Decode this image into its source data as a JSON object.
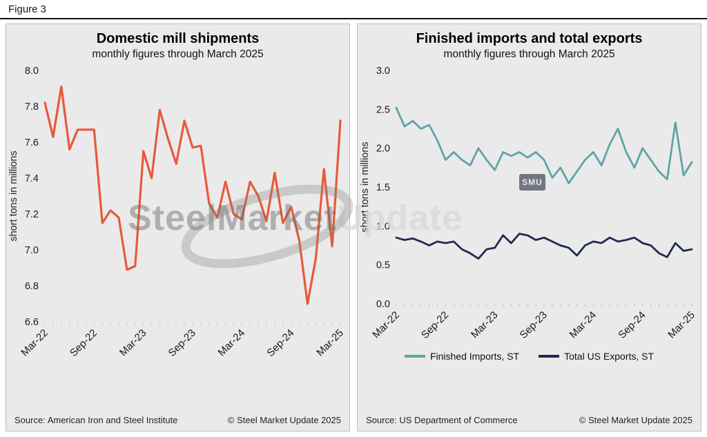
{
  "figure_label": "Figure 3",
  "watermark": {
    "text_bold": "SteelMarket",
    "text_light": "Update",
    "badge": "SMU"
  },
  "left_panel": {
    "title": "Domestic mill shipments",
    "subtitle": "monthly figures through March 2025",
    "ylabel": "short tons in millions",
    "source": "Source: American Iron and Steel Institute",
    "copyright": "© Steel Market Update 2025"
  },
  "right_panel": {
    "title": "Finished imports and total exports",
    "subtitle": "monthly figures through March 2025",
    "ylabel": "short tons in millions",
    "source": "Source: US Department of Commerce",
    "copyright": "© Steel Market Update 2025",
    "legend": [
      {
        "label": "Finished Imports, ST",
        "color": "#5fa3a8"
      },
      {
        "label": "Total US Exports, ST",
        "color": "#1e2a4f"
      }
    ]
  },
  "chart_data": [
    {
      "type": "line",
      "title": "Domestic mill shipments",
      "subtitle": "monthly figures through March 2025",
      "ylabel": "short tons in millions",
      "ylim": [
        6.6,
        8.0
      ],
      "ytick_step": 0.2,
      "grid": false,
      "legend_position": "none",
      "xtick_every": 6,
      "categories": [
        "Mar-22",
        "Apr-22",
        "May-22",
        "Jun-22",
        "Jul-22",
        "Aug-22",
        "Sep-22",
        "Oct-22",
        "Nov-22",
        "Dec-22",
        "Jan-23",
        "Feb-23",
        "Mar-23",
        "Apr-23",
        "May-23",
        "Jun-23",
        "Jul-23",
        "Aug-23",
        "Sep-23",
        "Oct-23",
        "Nov-23",
        "Dec-23",
        "Jan-24",
        "Feb-24",
        "Mar-24",
        "Apr-24",
        "May-24",
        "Jun-24",
        "Jul-24",
        "Aug-24",
        "Sep-24",
        "Oct-24",
        "Nov-24",
        "Dec-24",
        "Jan-25",
        "Feb-25",
        "Mar-25"
      ],
      "series": [
        {
          "name": "Domestic mill shipments, ST",
          "color": "#e8593a",
          "width": 3.2,
          "values": [
            7.82,
            7.63,
            7.91,
            7.56,
            7.67,
            7.67,
            7.67,
            7.15,
            7.22,
            7.18,
            6.89,
            6.91,
            7.55,
            7.4,
            7.78,
            7.62,
            7.48,
            7.72,
            7.57,
            7.58,
            7.26,
            7.18,
            7.38,
            7.2,
            7.17,
            7.38,
            7.3,
            7.16,
            7.43,
            7.15,
            7.24,
            7.05,
            6.7,
            6.95,
            7.45,
            7.02,
            7.72
          ]
        }
      ]
    },
    {
      "type": "line",
      "title": "Finished imports and total exports",
      "subtitle": "monthly figures through March 2025",
      "ylabel": "short tons in millions",
      "ylim": [
        0.0,
        3.0
      ],
      "ytick_step": 0.5,
      "grid": false,
      "legend_position": "bottom",
      "xtick_every": 6,
      "categories": [
        "Mar-22",
        "Apr-22",
        "May-22",
        "Jun-22",
        "Jul-22",
        "Aug-22",
        "Sep-22",
        "Oct-22",
        "Nov-22",
        "Dec-22",
        "Jan-23",
        "Feb-23",
        "Mar-23",
        "Apr-23",
        "May-23",
        "Jun-23",
        "Jul-23",
        "Aug-23",
        "Sep-23",
        "Oct-23",
        "Nov-23",
        "Dec-23",
        "Jan-24",
        "Feb-24",
        "Mar-24",
        "Apr-24",
        "May-24",
        "Jun-24",
        "Jul-24",
        "Aug-24",
        "Sep-24",
        "Oct-24",
        "Nov-24",
        "Dec-24",
        "Jan-25",
        "Feb-25",
        "Mar-25"
      ],
      "series": [
        {
          "name": "Finished Imports, ST",
          "color": "#5fa3a8",
          "width": 2.8,
          "values": [
            2.52,
            2.28,
            2.35,
            2.25,
            2.3,
            2.1,
            1.85,
            1.95,
            1.85,
            1.78,
            2.0,
            1.85,
            1.72,
            1.95,
            1.9,
            1.95,
            1.88,
            1.95,
            1.85,
            1.62,
            1.75,
            1.55,
            1.7,
            1.85,
            1.95,
            1.78,
            2.05,
            2.25,
            1.95,
            1.75,
            2.0,
            1.85,
            1.7,
            1.6,
            2.33,
            1.65,
            1.82
          ]
        },
        {
          "name": "Total US Exports, ST",
          "color": "#1e2a4f",
          "width": 2.8,
          "values": [
            0.85,
            0.82,
            0.84,
            0.8,
            0.75,
            0.8,
            0.78,
            0.8,
            0.7,
            0.65,
            0.58,
            0.7,
            0.72,
            0.88,
            0.78,
            0.9,
            0.88,
            0.82,
            0.85,
            0.8,
            0.75,
            0.72,
            0.62,
            0.75,
            0.8,
            0.78,
            0.85,
            0.8,
            0.82,
            0.85,
            0.78,
            0.75,
            0.65,
            0.6,
            0.78,
            0.68,
            0.7
          ]
        }
      ]
    }
  ]
}
